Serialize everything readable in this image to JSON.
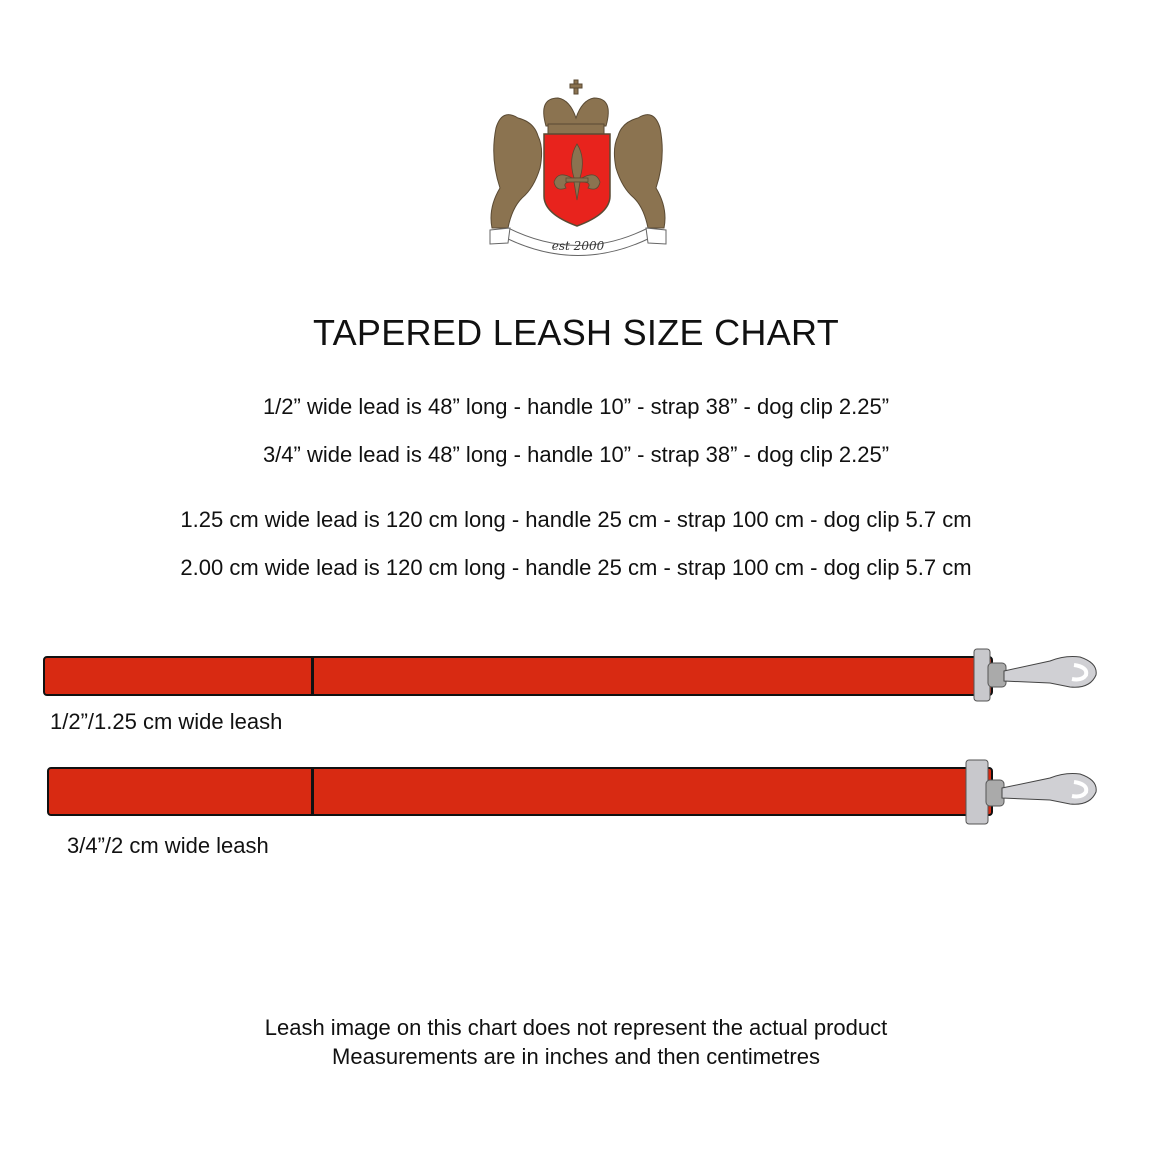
{
  "logo": {
    "text": "est 2000",
    "colors": {
      "shield": "#e8231d",
      "gold": "#8b7350"
    }
  },
  "title": "TAPERED LEASH SIZE CHART",
  "lines": [
    "1/2” wide lead is 48” long - handle 10” - strap 38” - dog clip 2.25”",
    "3/4” wide lead is 48” long - handle 10” - strap 38” - dog clip 2.25”",
    "1.25 cm wide lead is 120 cm long - handle 25 cm - strap 100 cm - dog clip 5.7 cm",
    "2.00 cm wide lead is 120 cm long - handle 25 cm - strap 100 cm - dog clip 5.7 cm"
  ],
  "leashes": [
    {
      "label": "1/2”/1.25 cm wide leash",
      "color": "#d82a12"
    },
    {
      "label": "3/4”/2 cm wide leash",
      "color": "#d82a12"
    }
  ],
  "footer": [
    "Leash image on this chart does not represent the actual product",
    "Measurements are in inches and then centimetres"
  ]
}
